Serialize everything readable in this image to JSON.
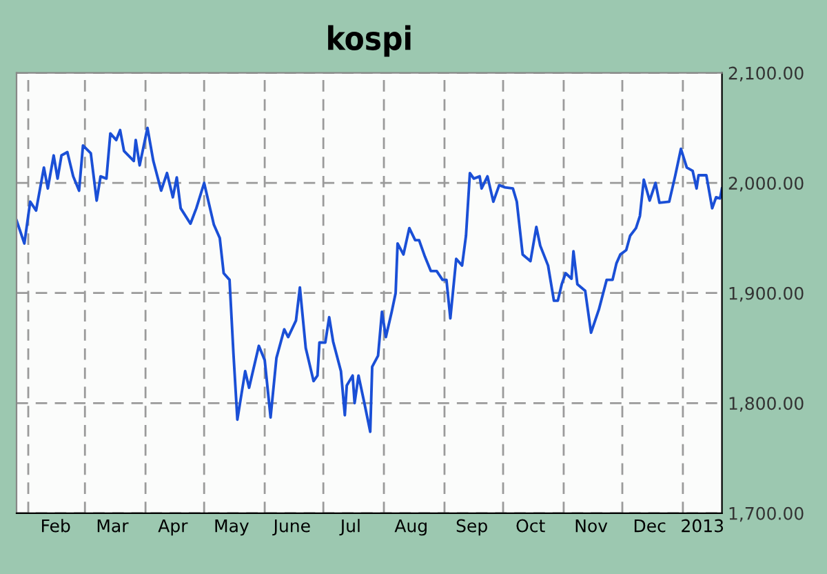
{
  "chart_data": {
    "type": "line",
    "title": "kospi",
    "x": [
      "2012-01-26",
      "2012-01-30",
      "2012-02-02",
      "2012-02-05",
      "2012-02-09",
      "2012-02-11",
      "2012-02-14",
      "2012-02-16",
      "2012-02-18",
      "2012-02-21",
      "2012-02-24",
      "2012-02-27",
      "2012-02-29",
      "2012-03-04",
      "2012-03-07",
      "2012-03-09",
      "2012-03-12",
      "2012-03-14",
      "2012-03-17",
      "2012-03-19",
      "2012-03-21",
      "2012-03-26",
      "2012-03-27",
      "2012-03-29",
      "2012-04-02",
      "2012-04-05",
      "2012-04-09",
      "2012-04-12",
      "2012-04-15",
      "2012-04-17",
      "2012-04-19",
      "2012-04-24",
      "2012-04-27",
      "2012-05-01",
      "2012-05-06",
      "2012-05-09",
      "2012-05-11",
      "2012-05-14",
      "2012-05-16",
      "2012-05-18",
      "2012-05-22",
      "2012-05-24",
      "2012-05-29",
      "2012-06-01",
      "2012-06-04",
      "2012-06-07",
      "2012-06-11",
      "2012-06-13",
      "2012-06-17",
      "2012-06-19",
      "2012-06-22",
      "2012-06-26",
      "2012-06-28",
      "2012-06-29",
      "2012-07-02",
      "2012-07-04",
      "2012-07-06",
      "2012-07-10",
      "2012-07-12",
      "2012-07-13",
      "2012-07-16",
      "2012-07-17",
      "2012-07-19",
      "2012-07-22",
      "2012-07-25",
      "2012-07-26",
      "2012-07-29",
      "2012-07-31",
      "2012-08-02",
      "2012-08-05",
      "2012-08-07",
      "2012-08-08",
      "2012-08-11",
      "2012-08-14",
      "2012-08-17",
      "2012-08-19",
      "2012-08-22",
      "2012-08-25",
      "2012-08-28",
      "2012-08-31",
      "2012-09-02",
      "2012-09-04",
      "2012-09-07",
      "2012-09-10",
      "2012-09-12",
      "2012-09-14",
      "2012-09-16",
      "2012-09-19",
      "2012-09-20",
      "2012-09-23",
      "2012-09-26",
      "2012-09-29",
      "2012-10-02",
      "2012-10-06",
      "2012-10-08",
      "2012-10-11",
      "2012-10-15",
      "2012-10-18",
      "2012-10-20",
      "2012-10-24",
      "2012-10-27",
      "2012-10-29",
      "2012-10-31",
      "2012-11-02",
      "2012-11-05",
      "2012-11-06",
      "2012-11-08",
      "2012-11-12",
      "2012-11-15",
      "2012-11-19",
      "2012-11-23",
      "2012-11-26",
      "2012-11-28",
      "2012-11-30",
      "2012-12-03",
      "2012-12-05",
      "2012-12-08",
      "2012-12-10",
      "2012-12-12",
      "2012-12-15",
      "2012-12-18",
      "2012-12-20",
      "2012-12-25",
      "2012-12-28",
      "2012-12-31",
      "2013-01-03",
      "2013-01-06",
      "2013-01-08",
      "2013-01-09",
      "2013-01-13",
      "2013-01-16",
      "2013-01-18",
      "2013-01-20",
      "2013-01-21"
    ],
    "series": [
      {
        "color": "#1a4fd6",
        "values": [
          1966,
          1945,
          1983,
          1975,
          2014,
          1995,
          2025,
          2004,
          2025,
          2028,
          2006,
          1993,
          2034,
          2027,
          1984,
          2006,
          2004,
          2045,
          2039,
          2048,
          2029,
          2020,
          2039,
          2016,
          2050,
          2020,
          1993,
          2009,
          1987,
          2005,
          1977,
          1963,
          1977,
          2000,
          1962,
          1950,
          1918,
          1912,
          1845,
          1785,
          1829,
          1814,
          1852,
          1839,
          1787,
          1841,
          1867,
          1860,
          1875,
          1905,
          1850,
          1820,
          1825,
          1855,
          1855,
          1878,
          1856,
          1829,
          1789,
          1816,
          1825,
          1800,
          1825,
          1800,
          1774,
          1833,
          1843,
          1883,
          1860,
          1883,
          1900,
          1945,
          1935,
          1959,
          1948,
          1948,
          1933,
          1920,
          1920,
          1912,
          1912,
          1877,
          1931,
          1925,
          1952,
          2009,
          2004,
          2006,
          1995,
          2006,
          1983,
          1998,
          1996,
          1995,
          1983,
          1935,
          1929,
          1960,
          1943,
          1925,
          1893,
          1893,
          1908,
          1918,
          1913,
          1938,
          1908,
          1902,
          1864,
          1885,
          1912,
          1912,
          1927,
          1935,
          1939,
          1952,
          1959,
          1970,
          2003,
          1984,
          2000,
          1982,
          1983,
          2006,
          2031,
          2014,
          2011,
          1995,
          2007,
          2007,
          1977,
          1987,
          1986,
          1995
        ]
      }
    ],
    "xlim": [
      "2012-01-26",
      "2013-01-21"
    ],
    "xticks": [
      {
        "value": "2012-02-01",
        "label": null
      },
      {
        "value": "2012-02-15",
        "label": "Feb"
      },
      {
        "value": "2012-03-01",
        "label": null
      },
      {
        "value": "2012-03-15",
        "label": "Mar"
      },
      {
        "value": "2012-04-01",
        "label": null
      },
      {
        "value": "2012-04-15",
        "label": "Apr"
      },
      {
        "value": "2012-05-01",
        "label": null
      },
      {
        "value": "2012-05-15",
        "label": "May"
      },
      {
        "value": "2012-06-01",
        "label": null
      },
      {
        "value": "2012-06-15",
        "label": "June"
      },
      {
        "value": "2012-07-01",
        "label": null
      },
      {
        "value": "2012-07-15",
        "label": "Jul"
      },
      {
        "value": "2012-08-01",
        "label": null
      },
      {
        "value": "2012-08-15",
        "label": "Aug"
      },
      {
        "value": "2012-09-01",
        "label": null
      },
      {
        "value": "2012-09-15",
        "label": "Sep"
      },
      {
        "value": "2012-10-01",
        "label": null
      },
      {
        "value": "2012-10-15",
        "label": "Oct"
      },
      {
        "value": "2012-11-01",
        "label": null
      },
      {
        "value": "2012-11-15",
        "label": "Nov"
      },
      {
        "value": "2012-12-01",
        "label": null
      },
      {
        "value": "2012-12-15",
        "label": "Dec"
      },
      {
        "value": "2013-01-01",
        "label": null
      },
      {
        "value": "2013-01-11",
        "label": "2013"
      }
    ],
    "ylim": [
      1700,
      2100
    ],
    "yticks": [
      {
        "value": 1700,
        "label": "1,700.00"
      },
      {
        "value": 1800,
        "label": "1,800.00"
      },
      {
        "value": 1900,
        "label": "1,900.00"
      },
      {
        "value": 2000,
        "label": "2,000.00"
      },
      {
        "value": 2100,
        "label": "2,100.00"
      }
    ],
    "grid": true,
    "line_style": "solid"
  }
}
